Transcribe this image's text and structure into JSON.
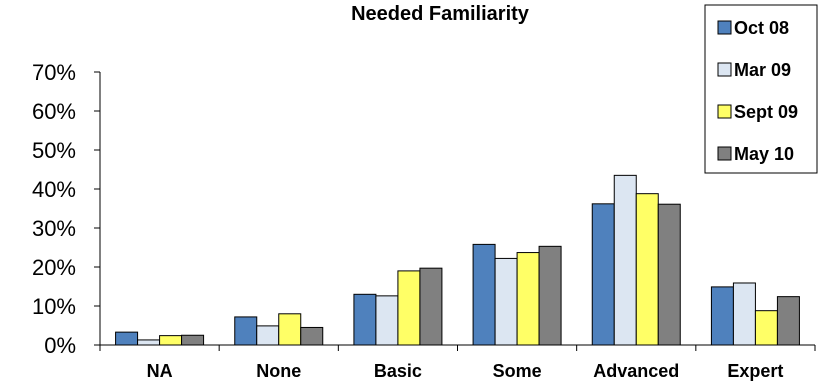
{
  "chart_data": {
    "type": "bar",
    "title": "Needed Familiarity",
    "xlabel": "",
    "ylabel": "",
    "categories": [
      "NA",
      "None",
      "Basic",
      "Some",
      "Advanced",
      "Expert"
    ],
    "series": [
      {
        "name": "Oct 08",
        "color": "#4f81bd",
        "values": [
          3.3,
          7.2,
          13.0,
          25.8,
          36.2,
          14.9
        ]
      },
      {
        "name": "Mar 09",
        "color": "#dce6f2",
        "values": [
          1.3,
          4.9,
          12.6,
          22.2,
          43.5,
          15.9
        ]
      },
      {
        "name": "Sept 09",
        "color": "#ffff66",
        "values": [
          2.4,
          8.0,
          19.0,
          23.7,
          38.8,
          8.8
        ]
      },
      {
        "name": "May 10",
        "color": "#808080",
        "values": [
          2.5,
          4.5,
          19.7,
          25.3,
          36.1,
          12.4
        ]
      }
    ],
    "ylim": [
      0,
      70
    ],
    "yticks": [
      "0%",
      "10%",
      "20%",
      "30%",
      "40%",
      "50%",
      "60%",
      "70%"
    ],
    "legend_position": "top-right",
    "grid": false
  }
}
